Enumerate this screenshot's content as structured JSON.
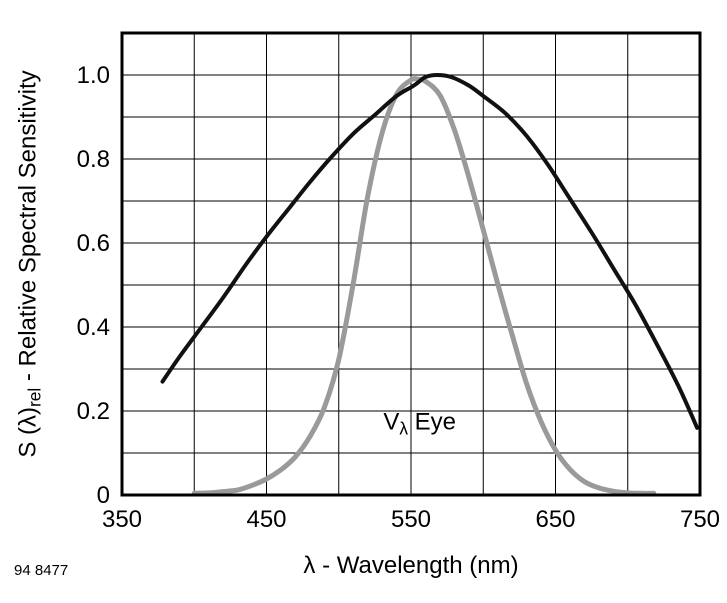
{
  "page": {
    "footnote": "94 8477"
  },
  "chart_data": {
    "type": "line",
    "title": "",
    "xlabel": "λ - Wavelength (nm)",
    "ylabel": {
      "pre": "S (λ)",
      "sub": "rel",
      "post": " - Relative Spectral Sensitivity"
    },
    "xlim": [
      350,
      750
    ],
    "ylim": [
      0,
      1.1
    ],
    "x_ticks": [
      {
        "v": 350,
        "label": "350"
      },
      {
        "v": 450,
        "label": "450"
      },
      {
        "v": 550,
        "label": "550"
      },
      {
        "v": 650,
        "label": "650"
      },
      {
        "v": 750,
        "label": "750"
      }
    ],
    "y_ticks": [
      {
        "v": 0,
        "label": "0"
      },
      {
        "v": 0.2,
        "label": "0.2"
      },
      {
        "v": 0.4,
        "label": "0.4"
      },
      {
        "v": 0.6,
        "label": "0.6"
      },
      {
        "v": 0.8,
        "label": "0.8"
      },
      {
        "v": 1.0,
        "label": "1.0"
      }
    ],
    "grid": {
      "x_step": 50,
      "y_step": 0.1,
      "color": "#000000",
      "width": 1
    },
    "frame_color": "#000000",
    "series": [
      {
        "name": "eye-sensitivity-V-lambda",
        "color": "#9a9a9a",
        "stroke_width": 5,
        "points": [
          [
            400,
            0.004
          ],
          [
            410,
            0.005
          ],
          [
            420,
            0.008
          ],
          [
            430,
            0.012
          ],
          [
            440,
            0.023
          ],
          [
            450,
            0.038
          ],
          [
            460,
            0.06
          ],
          [
            470,
            0.091
          ],
          [
            480,
            0.139
          ],
          [
            490,
            0.208
          ],
          [
            500,
            0.323
          ],
          [
            510,
            0.503
          ],
          [
            520,
            0.71
          ],
          [
            530,
            0.862
          ],
          [
            540,
            0.954
          ],
          [
            550,
            0.988
          ],
          [
            555,
            0.99
          ],
          [
            560,
            0.985
          ],
          [
            570,
            0.952
          ],
          [
            580,
            0.87
          ],
          [
            590,
            0.757
          ],
          [
            600,
            0.631
          ],
          [
            610,
            0.503
          ],
          [
            620,
            0.381
          ],
          [
            630,
            0.265
          ],
          [
            640,
            0.175
          ],
          [
            650,
            0.107
          ],
          [
            660,
            0.061
          ],
          [
            670,
            0.032
          ],
          [
            680,
            0.017
          ],
          [
            690,
            0.009
          ],
          [
            700,
            0.005
          ],
          [
            710,
            0.004
          ],
          [
            718,
            0.004
          ]
        ]
      },
      {
        "name": "photodetector-relative-spectral-sensitivity",
        "color": "#111111",
        "stroke_width": 4,
        "points": [
          [
            378,
            0.27
          ],
          [
            390,
            0.33
          ],
          [
            405,
            0.4
          ],
          [
            420,
            0.47
          ],
          [
            435,
            0.545
          ],
          [
            450,
            0.615
          ],
          [
            465,
            0.68
          ],
          [
            480,
            0.745
          ],
          [
            495,
            0.805
          ],
          [
            510,
            0.86
          ],
          [
            525,
            0.905
          ],
          [
            540,
            0.95
          ],
          [
            552,
            0.975
          ],
          [
            560,
            0.995
          ],
          [
            568,
            1.0
          ],
          [
            578,
            0.995
          ],
          [
            590,
            0.975
          ],
          [
            600,
            0.95
          ],
          [
            615,
            0.91
          ],
          [
            630,
            0.855
          ],
          [
            645,
            0.785
          ],
          [
            660,
            0.705
          ],
          [
            675,
            0.625
          ],
          [
            690,
            0.54
          ],
          [
            705,
            0.455
          ],
          [
            720,
            0.36
          ],
          [
            735,
            0.26
          ],
          [
            748,
            0.16
          ]
        ]
      }
    ],
    "annotation": {
      "pre": "V",
      "sub": "λ",
      "post": " Eye",
      "x": 556,
      "y": 0.17
    }
  }
}
